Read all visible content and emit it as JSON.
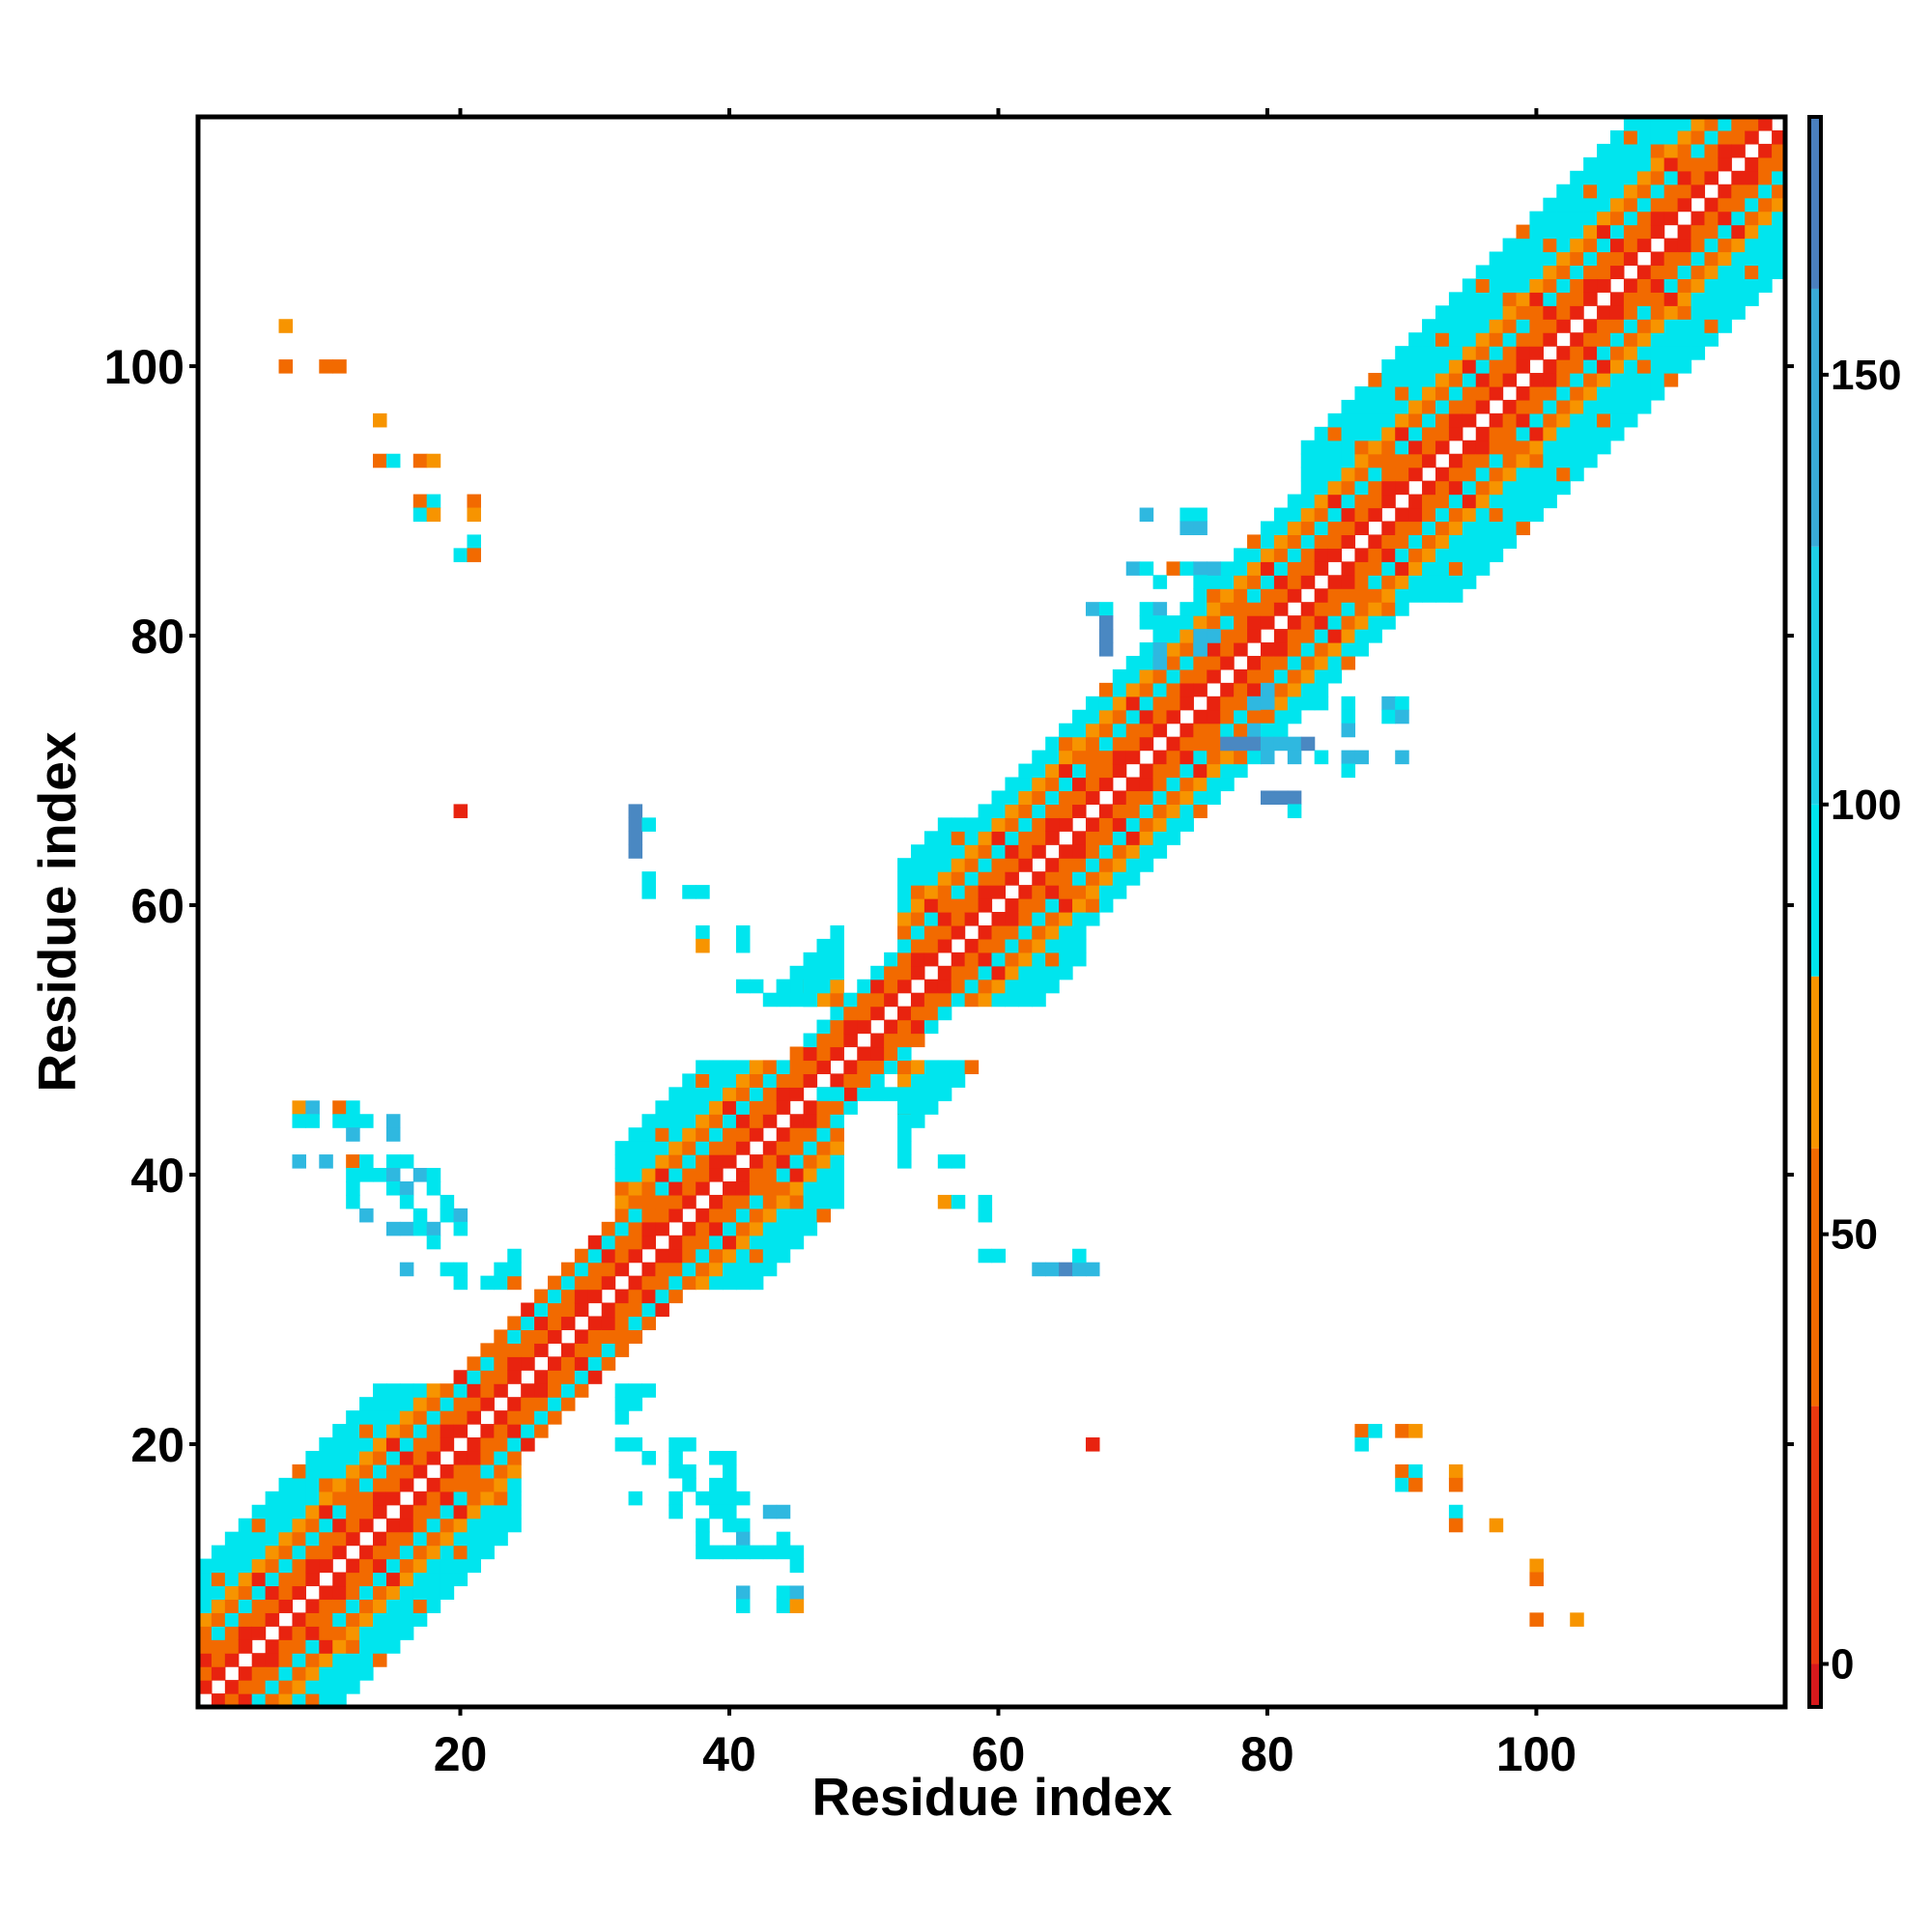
{
  "chart_data": {
    "type": "heatmap",
    "title": "",
    "xlabel": "Residue index",
    "ylabel": "Residue index",
    "xlim": [
      1,
      118
    ],
    "ylim": [
      1,
      118
    ],
    "xticks": [
      20,
      40,
      60,
      80,
      100
    ],
    "yticks": [
      20,
      40,
      60,
      80,
      100
    ],
    "grid": false,
    "colorbar": {
      "ticks": [
        0,
        50,
        100,
        150
      ],
      "range": [
        -5,
        180
      ],
      "bands": [
        {
          "from": -5,
          "to": 0,
          "color": "#d7191c"
        },
        {
          "from": 0,
          "to": 30,
          "color": "#e8380f"
        },
        {
          "from": 30,
          "to": 60,
          "color": "#f26a00"
        },
        {
          "from": 60,
          "to": 80,
          "color": "#f79400"
        },
        {
          "from": 80,
          "to": 100,
          "color": "#00e5ee"
        },
        {
          "from": 100,
          "to": 130,
          "color": "#1ecfe6"
        },
        {
          "from": 130,
          "to": 160,
          "color": "#39a9d6"
        },
        {
          "from": 160,
          "to": 180,
          "color": "#4a7fbf"
        }
      ]
    },
    "colors": {
      "red": "#e8230f",
      "orange": "#f26a00",
      "amber": "#f79400",
      "cyan": "#00e5ee",
      "sky": "#2fb8e0",
      "steel": "#4a88c2"
    },
    "diagonal_band": {
      "segments": [
        {
          "from": 1,
          "to": 24,
          "halfwidth": 10
        },
        {
          "from": 24,
          "to": 31,
          "halfwidth": 5
        },
        {
          "from": 31,
          "to": 48,
          "halfwidth": 10
        },
        {
          "from": 48,
          "to": 52,
          "halfwidth": 4
        },
        {
          "from": 52,
          "to": 66,
          "halfwidth": 10
        },
        {
          "from": 66,
          "to": 82,
          "halfwidth": 8
        },
        {
          "from": 82,
          "to": 118,
          "halfwidth": 11
        }
      ],
      "pattern": [
        "white",
        "red",
        "orange",
        "orange",
        "cyan",
        "orange",
        "amber",
        "cyan",
        "cyan",
        "cyan",
        "cyan",
        "cyan"
      ]
    },
    "offdiagonal_cells": [
      {
        "x": 7,
        "y": 103,
        "c": "amber"
      },
      {
        "x": 7,
        "y": 100,
        "c": "orange"
      },
      {
        "x": 10,
        "y": 100,
        "c": "orange"
      },
      {
        "x": 11,
        "y": 100,
        "c": "orange"
      },
      {
        "x": 14,
        "y": 96,
        "c": "amber"
      },
      {
        "x": 14,
        "y": 93,
        "c": "orange"
      },
      {
        "x": 15,
        "y": 93,
        "c": "cyan"
      },
      {
        "x": 17,
        "y": 93,
        "c": "orange"
      },
      {
        "x": 18,
        "y": 93,
        "c": "amber"
      },
      {
        "x": 17,
        "y": 90,
        "c": "orange"
      },
      {
        "x": 18,
        "y": 90,
        "c": "cyan"
      },
      {
        "x": 17,
        "y": 89,
        "c": "cyan"
      },
      {
        "x": 18,
        "y": 89,
        "c": "amber"
      },
      {
        "x": 21,
        "y": 90,
        "c": "orange"
      },
      {
        "x": 21,
        "y": 89,
        "c": "amber"
      },
      {
        "x": 21,
        "y": 87,
        "c": "cyan"
      },
      {
        "x": 20,
        "y": 86,
        "c": "cyan"
      },
      {
        "x": 21,
        "y": 86,
        "c": "orange"
      },
      {
        "x": 20,
        "y": 67,
        "c": "red"
      },
      {
        "x": 8,
        "y": 45,
        "c": "amber"
      },
      {
        "x": 9,
        "y": 45,
        "c": "sky"
      },
      {
        "x": 11,
        "y": 45,
        "c": "orange"
      },
      {
        "x": 12,
        "y": 45,
        "c": "cyan"
      },
      {
        "x": 8,
        "y": 44,
        "c": "cyan"
      },
      {
        "x": 9,
        "y": 44,
        "c": "cyan"
      },
      {
        "x": 11,
        "y": 44,
        "c": "cyan"
      },
      {
        "x": 12,
        "y": 44,
        "c": "cyan"
      },
      {
        "x": 13,
        "y": 44,
        "c": "cyan"
      },
      {
        "x": 15,
        "y": 44,
        "c": "sky"
      },
      {
        "x": 12,
        "y": 43,
        "c": "sky"
      },
      {
        "x": 15,
        "y": 43,
        "c": "sky"
      },
      {
        "x": 8,
        "y": 41,
        "c": "sky"
      },
      {
        "x": 10,
        "y": 41,
        "c": "sky"
      },
      {
        "x": 12,
        "y": 41,
        "c": "orange"
      },
      {
        "x": 13,
        "y": 41,
        "c": "cyan"
      },
      {
        "x": 15,
        "y": 41,
        "c": "cyan"
      },
      {
        "x": 16,
        "y": 41,
        "c": "cyan"
      },
      {
        "x": 12,
        "y": 40,
        "c": "cyan"
      },
      {
        "x": 13,
        "y": 40,
        "c": "cyan"
      },
      {
        "x": 14,
        "y": 40,
        "c": "cyan"
      },
      {
        "x": 15,
        "y": 40,
        "c": "sky"
      },
      {
        "x": 17,
        "y": 40,
        "c": "sky"
      },
      {
        "x": 18,
        "y": 40,
        "c": "cyan"
      },
      {
        "x": 12,
        "y": 39,
        "c": "cyan"
      },
      {
        "x": 15,
        "y": 39,
        "c": "cyan"
      },
      {
        "x": 16,
        "y": 39,
        "c": "sky"
      },
      {
        "x": 18,
        "y": 39,
        "c": "cyan"
      },
      {
        "x": 12,
        "y": 38,
        "c": "cyan"
      },
      {
        "x": 16,
        "y": 38,
        "c": "cyan"
      },
      {
        "x": 19,
        "y": 38,
        "c": "cyan"
      },
      {
        "x": 13,
        "y": 37,
        "c": "sky"
      },
      {
        "x": 17,
        "y": 37,
        "c": "cyan"
      },
      {
        "x": 19,
        "y": 37,
        "c": "cyan"
      },
      {
        "x": 20,
        "y": 37,
        "c": "sky"
      },
      {
        "x": 15,
        "y": 36,
        "c": "sky"
      },
      {
        "x": 16,
        "y": 36,
        "c": "sky"
      },
      {
        "x": 17,
        "y": 36,
        "c": "cyan"
      },
      {
        "x": 18,
        "y": 36,
        "c": "sky"
      },
      {
        "x": 20,
        "y": 36,
        "c": "cyan"
      },
      {
        "x": 18,
        "y": 35,
        "c": "cyan"
      },
      {
        "x": 16,
        "y": 33,
        "c": "sky"
      },
      {
        "x": 19,
        "y": 33,
        "c": "cyan"
      },
      {
        "x": 20,
        "y": 33,
        "c": "cyan"
      },
      {
        "x": 20,
        "y": 32,
        "c": "cyan"
      },
      {
        "x": 33,
        "y": 67,
        "c": "steel"
      },
      {
        "x": 33,
        "y": 66,
        "c": "steel"
      },
      {
        "x": 34,
        "y": 66,
        "c": "cyan"
      },
      {
        "x": 33,
        "y": 65,
        "c": "steel"
      },
      {
        "x": 33,
        "y": 64,
        "c": "steel"
      },
      {
        "x": 34,
        "y": 62,
        "c": "cyan"
      },
      {
        "x": 34,
        "y": 61,
        "c": "cyan"
      },
      {
        "x": 37,
        "y": 61,
        "c": "cyan"
      },
      {
        "x": 38,
        "y": 61,
        "c": "cyan"
      },
      {
        "x": 38,
        "y": 58,
        "c": "cyan"
      },
      {
        "x": 41,
        "y": 58,
        "c": "cyan"
      },
      {
        "x": 38,
        "y": 57,
        "c": "amber"
      },
      {
        "x": 41,
        "y": 57,
        "c": "cyan"
      },
      {
        "x": 41,
        "y": 54,
        "c": "cyan"
      },
      {
        "x": 42,
        "y": 54,
        "c": "cyan"
      },
      {
        "x": 44,
        "y": 54,
        "c": "cyan"
      },
      {
        "x": 46,
        "y": 54,
        "c": "cyan"
      },
      {
        "x": 46,
        "y": 53,
        "c": "cyan"
      },
      {
        "x": 47,
        "y": 46,
        "c": "cyan"
      },
      {
        "x": 48,
        "y": 46,
        "c": "cyan"
      },
      {
        "x": 51,
        "y": 46,
        "c": "cyan"
      },
      {
        "x": 52,
        "y": 46,
        "c": "cyan"
      },
      {
        "x": 53,
        "y": 46,
        "c": "cyan"
      },
      {
        "x": 53,
        "y": 45,
        "c": "cyan"
      },
      {
        "x": 53,
        "y": 42,
        "c": "cyan"
      },
      {
        "x": 53,
        "y": 41,
        "c": "cyan"
      },
      {
        "x": 56,
        "y": 41,
        "c": "cyan"
      },
      {
        "x": 57,
        "y": 41,
        "c": "cyan"
      },
      {
        "x": 56,
        "y": 38,
        "c": "amber"
      },
      {
        "x": 57,
        "y": 38,
        "c": "cyan"
      },
      {
        "x": 59,
        "y": 38,
        "c": "cyan"
      },
      {
        "x": 59,
        "y": 37,
        "c": "cyan"
      },
      {
        "x": 59,
        "y": 34,
        "c": "cyan"
      },
      {
        "x": 60,
        "y": 34,
        "c": "cyan"
      },
      {
        "x": 63,
        "y": 33,
        "c": "sky"
      },
      {
        "x": 64,
        "y": 33,
        "c": "sky"
      },
      {
        "x": 65,
        "y": 33,
        "c": "steel"
      },
      {
        "x": 66,
        "y": 33,
        "c": "sky"
      },
      {
        "x": 67,
        "y": 33,
        "c": "sky"
      },
      {
        "x": 66,
        "y": 34,
        "c": "cyan"
      },
      {
        "x": 32,
        "y": 20,
        "c": "cyan"
      },
      {
        "x": 33,
        "y": 20,
        "c": "cyan"
      },
      {
        "x": 36,
        "y": 20,
        "c": "cyan"
      },
      {
        "x": 37,
        "y": 20,
        "c": "cyan"
      },
      {
        "x": 34,
        "y": 19,
        "c": "cyan"
      },
      {
        "x": 36,
        "y": 19,
        "c": "cyan"
      },
      {
        "x": 39,
        "y": 19,
        "c": "cyan"
      },
      {
        "x": 40,
        "y": 19,
        "c": "cyan"
      },
      {
        "x": 36,
        "y": 18,
        "c": "cyan"
      },
      {
        "x": 37,
        "y": 18,
        "c": "cyan"
      },
      {
        "x": 40,
        "y": 18,
        "c": "cyan"
      },
      {
        "x": 37,
        "y": 17,
        "c": "cyan"
      },
      {
        "x": 39,
        "y": 17,
        "c": "cyan"
      },
      {
        "x": 40,
        "y": 17,
        "c": "cyan"
      },
      {
        "x": 33,
        "y": 16,
        "c": "cyan"
      },
      {
        "x": 36,
        "y": 16,
        "c": "cyan"
      },
      {
        "x": 38,
        "y": 16,
        "c": "cyan"
      },
      {
        "x": 39,
        "y": 16,
        "c": "cyan"
      },
      {
        "x": 40,
        "y": 16,
        "c": "cyan"
      },
      {
        "x": 41,
        "y": 16,
        "c": "cyan"
      },
      {
        "x": 36,
        "y": 15,
        "c": "cyan"
      },
      {
        "x": 39,
        "y": 15,
        "c": "cyan"
      },
      {
        "x": 40,
        "y": 15,
        "c": "cyan"
      },
      {
        "x": 43,
        "y": 15,
        "c": "sky"
      },
      {
        "x": 44,
        "y": 15,
        "c": "sky"
      },
      {
        "x": 38,
        "y": 14,
        "c": "cyan"
      },
      {
        "x": 40,
        "y": 14,
        "c": "cyan"
      },
      {
        "x": 41,
        "y": 14,
        "c": "cyan"
      },
      {
        "x": 38,
        "y": 13,
        "c": "cyan"
      },
      {
        "x": 41,
        "y": 13,
        "c": "sky"
      },
      {
        "x": 44,
        "y": 13,
        "c": "cyan"
      },
      {
        "x": 38,
        "y": 12,
        "c": "cyan"
      },
      {
        "x": 39,
        "y": 12,
        "c": "cyan"
      },
      {
        "x": 40,
        "y": 12,
        "c": "cyan"
      },
      {
        "x": 41,
        "y": 12,
        "c": "cyan"
      },
      {
        "x": 42,
        "y": 12,
        "c": "cyan"
      },
      {
        "x": 43,
        "y": 12,
        "c": "cyan"
      },
      {
        "x": 44,
        "y": 12,
        "c": "cyan"
      },
      {
        "x": 45,
        "y": 12,
        "c": "cyan"
      },
      {
        "x": 45,
        "y": 11,
        "c": "cyan"
      },
      {
        "x": 41,
        "y": 9,
        "c": "sky"
      },
      {
        "x": 44,
        "y": 9,
        "c": "cyan"
      },
      {
        "x": 45,
        "y": 9,
        "c": "sky"
      },
      {
        "x": 41,
        "y": 8,
        "c": "cyan"
      },
      {
        "x": 44,
        "y": 8,
        "c": "cyan"
      },
      {
        "x": 45,
        "y": 8,
        "c": "amber"
      },
      {
        "x": 67,
        "y": 20,
        "c": "red"
      },
      {
        "x": 87,
        "y": 21,
        "c": "orange"
      },
      {
        "x": 88,
        "y": 21,
        "c": "cyan"
      },
      {
        "x": 90,
        "y": 21,
        "c": "orange"
      },
      {
        "x": 91,
        "y": 21,
        "c": "amber"
      },
      {
        "x": 87,
        "y": 20,
        "c": "cyan"
      },
      {
        "x": 90,
        "y": 18,
        "c": "orange"
      },
      {
        "x": 91,
        "y": 18,
        "c": "cyan"
      },
      {
        "x": 94,
        "y": 18,
        "c": "amber"
      },
      {
        "x": 90,
        "y": 17,
        "c": "cyan"
      },
      {
        "x": 91,
        "y": 17,
        "c": "orange"
      },
      {
        "x": 94,
        "y": 17,
        "c": "orange"
      },
      {
        "x": 94,
        "y": 15,
        "c": "cyan"
      },
      {
        "x": 94,
        "y": 14,
        "c": "orange"
      },
      {
        "x": 97,
        "y": 14,
        "c": "amber"
      },
      {
        "x": 100,
        "y": 11,
        "c": "amber"
      },
      {
        "x": 100,
        "y": 10,
        "c": "orange"
      },
      {
        "x": 100,
        "y": 7,
        "c": "orange"
      },
      {
        "x": 103,
        "y": 7,
        "c": "amber"
      },
      {
        "x": 71,
        "y": 89,
        "c": "sky"
      },
      {
        "x": 74,
        "y": 89,
        "c": "cyan"
      },
      {
        "x": 75,
        "y": 89,
        "c": "cyan"
      },
      {
        "x": 74,
        "y": 88,
        "c": "sky"
      },
      {
        "x": 75,
        "y": 88,
        "c": "sky"
      },
      {
        "x": 70,
        "y": 85,
        "c": "sky"
      },
      {
        "x": 71,
        "y": 85,
        "c": "cyan"
      },
      {
        "x": 73,
        "y": 85,
        "c": "orange"
      },
      {
        "x": 74,
        "y": 85,
        "c": "cyan"
      },
      {
        "x": 75,
        "y": 85,
        "c": "sky"
      },
      {
        "x": 76,
        "y": 85,
        "c": "sky"
      },
      {
        "x": 72,
        "y": 84,
        "c": "cyan"
      },
      {
        "x": 75,
        "y": 84,
        "c": "cyan"
      },
      {
        "x": 67,
        "y": 82,
        "c": "sky"
      },
      {
        "x": 68,
        "y": 82,
        "c": "cyan"
      },
      {
        "x": 71,
        "y": 82,
        "c": "cyan"
      },
      {
        "x": 72,
        "y": 82,
        "c": "sky"
      },
      {
        "x": 68,
        "y": 81,
        "c": "steel"
      },
      {
        "x": 71,
        "y": 81,
        "c": "cyan"
      },
      {
        "x": 72,
        "y": 81,
        "c": "cyan"
      },
      {
        "x": 68,
        "y": 80,
        "c": "steel"
      },
      {
        "x": 72,
        "y": 80,
        "c": "cyan"
      },
      {
        "x": 75,
        "y": 80,
        "c": "sky"
      },
      {
        "x": 76,
        "y": 80,
        "c": "sky"
      },
      {
        "x": 68,
        "y": 79,
        "c": "steel"
      },
      {
        "x": 72,
        "y": 79,
        "c": "sky"
      },
      {
        "x": 75,
        "y": 79,
        "c": "sky"
      },
      {
        "x": 72,
        "y": 78,
        "c": "sky"
      },
      {
        "x": 80,
        "y": 76,
        "c": "sky"
      },
      {
        "x": 79,
        "y": 75,
        "c": "sky"
      },
      {
        "x": 80,
        "y": 75,
        "c": "sky"
      },
      {
        "x": 84,
        "y": 75,
        "c": "cyan"
      },
      {
        "x": 86,
        "y": 75,
        "c": "cyan"
      },
      {
        "x": 89,
        "y": 75,
        "c": "sky"
      },
      {
        "x": 90,
        "y": 75,
        "c": "cyan"
      },
      {
        "x": 80,
        "y": 74,
        "c": "orange"
      },
      {
        "x": 86,
        "y": 74,
        "c": "cyan"
      },
      {
        "x": 89,
        "y": 74,
        "c": "cyan"
      },
      {
        "x": 90,
        "y": 74,
        "c": "sky"
      },
      {
        "x": 79,
        "y": 73,
        "c": "sky"
      },
      {
        "x": 80,
        "y": 73,
        "c": "cyan"
      },
      {
        "x": 86,
        "y": 73,
        "c": "sky"
      },
      {
        "x": 77,
        "y": 72,
        "c": "steel"
      },
      {
        "x": 78,
        "y": 72,
        "c": "steel"
      },
      {
        "x": 79,
        "y": 72,
        "c": "steel"
      },
      {
        "x": 80,
        "y": 72,
        "c": "sky"
      },
      {
        "x": 81,
        "y": 72,
        "c": "sky"
      },
      {
        "x": 82,
        "y": 72,
        "c": "sky"
      },
      {
        "x": 83,
        "y": 72,
        "c": "steel"
      },
      {
        "x": 80,
        "y": 71,
        "c": "sky"
      },
      {
        "x": 82,
        "y": 71,
        "c": "sky"
      },
      {
        "x": 84,
        "y": 71,
        "c": "cyan"
      },
      {
        "x": 86,
        "y": 71,
        "c": "sky"
      },
      {
        "x": 87,
        "y": 71,
        "c": "sky"
      },
      {
        "x": 90,
        "y": 71,
        "c": "sky"
      },
      {
        "x": 86,
        "y": 70,
        "c": "cyan"
      },
      {
        "x": 80,
        "y": 68,
        "c": "steel"
      },
      {
        "x": 81,
        "y": 68,
        "c": "steel"
      },
      {
        "x": 82,
        "y": 68,
        "c": "steel"
      },
      {
        "x": 82,
        "y": 67,
        "c": "cyan"
      }
    ]
  }
}
